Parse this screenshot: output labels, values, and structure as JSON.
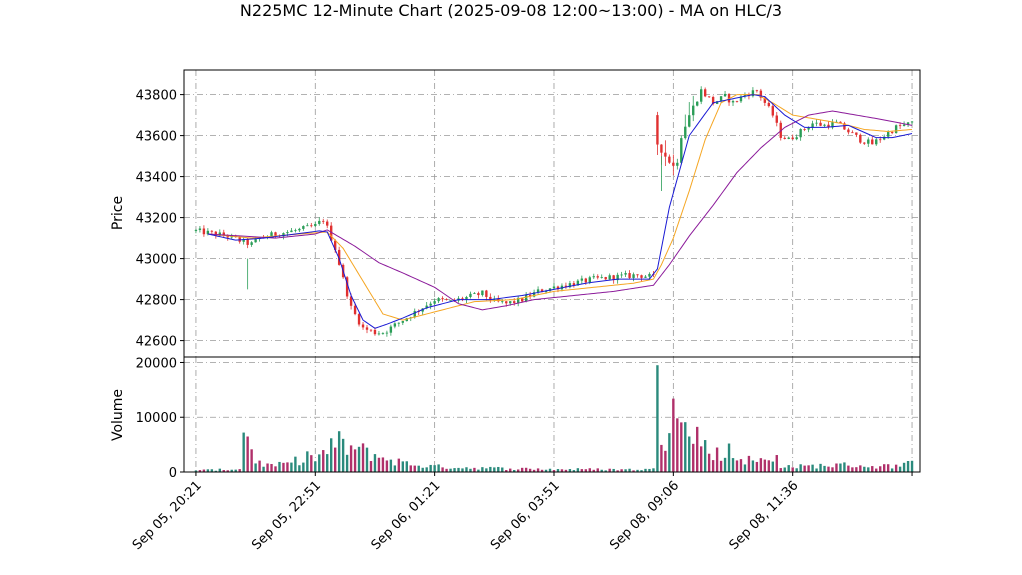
{
  "chart_data": {
    "type": "candlestick",
    "title": "N225MC 12-Minute Chart (2025-09-08 12:00~13:00) - MA on HLC/3",
    "price_panel": {
      "ylabel": "Price",
      "ylim": [
        42520,
        43920
      ],
      "yticks": [
        42600,
        42800,
        43000,
        43200,
        43400,
        43600,
        43800
      ],
      "ytick_labels": [
        "42600",
        "42800",
        "43000",
        "43200",
        "43400",
        "43600",
        "43800"
      ],
      "grid": true,
      "up_color": "#2a9d57",
      "down_color": "#e03030"
    },
    "volume_panel": {
      "ylabel": "Volume",
      "ylim": [
        0,
        21000
      ],
      "yticks": [
        0,
        10000,
        20000
      ],
      "ytick_labels": [
        "0",
        "10000",
        "20000"
      ],
      "up_color": "#2a8a7c",
      "down_color": "#b0306a"
    },
    "xlim": [
      -3,
      182
    ],
    "xticks": [
      0,
      30,
      60,
      90,
      120,
      150,
      180
    ],
    "xtick_labels": [
      "Sep 05, 20:21",
      "Sep 05, 22:51",
      "Sep 06, 01:21",
      "Sep 06, 03:51",
      "Sep 08, 09:06",
      "Sep 08, 11:36",
      ""
    ],
    "close_anchors": [
      [
        0,
        43135
      ],
      [
        8,
        43110
      ],
      [
        12,
        43080
      ],
      [
        14,
        43070
      ],
      [
        16,
        43100
      ],
      [
        20,
        43120
      ],
      [
        26,
        43140
      ],
      [
        30,
        43160
      ],
      [
        32,
        43190
      ],
      [
        33,
        43150
      ],
      [
        35,
        43050
      ],
      [
        37,
        42900
      ],
      [
        39,
        42760
      ],
      [
        42,
        42660
      ],
      [
        45,
        42640
      ],
      [
        47,
        42640
      ],
      [
        48,
        42650
      ],
      [
        52,
        42700
      ],
      [
        56,
        42750
      ],
      [
        60,
        42800
      ],
      [
        64,
        42790
      ],
      [
        68,
        42810
      ],
      [
        72,
        42830
      ],
      [
        75,
        42790
      ],
      [
        78,
        42780
      ],
      [
        82,
        42800
      ],
      [
        86,
        42840
      ],
      [
        90,
        42860
      ],
      [
        95,
        42880
      ],
      [
        100,
        42900
      ],
      [
        105,
        42910
      ],
      [
        111,
        42920
      ],
      [
        115,
        42910
      ],
      [
        116,
        43560
      ],
      [
        118,
        43500
      ],
      [
        120,
        43450
      ],
      [
        121,
        43480
      ],
      [
        122,
        43600
      ],
      [
        124,
        43700
      ],
      [
        127,
        43820
      ],
      [
        130,
        43760
      ],
      [
        133,
        43790
      ],
      [
        135,
        43760
      ],
      [
        138,
        43800
      ],
      [
        141,
        43820
      ],
      [
        143,
        43760
      ],
      [
        145,
        43700
      ],
      [
        147,
        43600
      ],
      [
        149,
        43580
      ],
      [
        152,
        43620
      ],
      [
        155,
        43660
      ],
      [
        158,
        43650
      ],
      [
        161,
        43660
      ],
      [
        164,
        43620
      ],
      [
        167,
        43580
      ],
      [
        170,
        43560
      ],
      [
        173,
        43600
      ],
      [
        176,
        43640
      ],
      [
        180,
        43660
      ]
    ],
    "ma_blue": [
      [
        3,
        43120
      ],
      [
        10,
        43090
      ],
      [
        17,
        43100
      ],
      [
        25,
        43120
      ],
      [
        31,
        43135
      ],
      [
        33,
        43130
      ],
      [
        36,
        43000
      ],
      [
        39,
        42820
      ],
      [
        42,
        42700
      ],
      [
        45,
        42660
      ],
      [
        48,
        42680
      ],
      [
        52,
        42710
      ],
      [
        58,
        42760
      ],
      [
        66,
        42800
      ],
      [
        74,
        42800
      ],
      [
        82,
        42820
      ],
      [
        90,
        42850
      ],
      [
        98,
        42880
      ],
      [
        106,
        42900
      ],
      [
        114,
        42900
      ],
      [
        116,
        42950
      ],
      [
        119,
        43250
      ],
      [
        124,
        43600
      ],
      [
        130,
        43760
      ],
      [
        135,
        43780
      ],
      [
        140,
        43800
      ],
      [
        143,
        43790
      ],
      [
        148,
        43700
      ],
      [
        153,
        43640
      ],
      [
        158,
        43640
      ],
      [
        164,
        43650
      ],
      [
        171,
        43590
      ],
      [
        175,
        43590
      ],
      [
        180,
        43610
      ]
    ],
    "ma_orange": [
      [
        3,
        43120
      ],
      [
        14,
        43100
      ],
      [
        26,
        43120
      ],
      [
        33,
        43130
      ],
      [
        37,
        43050
      ],
      [
        42,
        42890
      ],
      [
        47,
        42730
      ],
      [
        52,
        42700
      ],
      [
        60,
        42740
      ],
      [
        70,
        42790
      ],
      [
        80,
        42800
      ],
      [
        90,
        42840
      ],
      [
        100,
        42860
      ],
      [
        110,
        42880
      ],
      [
        115,
        42900
      ],
      [
        117,
        42970
      ],
      [
        120,
        43100
      ],
      [
        124,
        43330
      ],
      [
        128,
        43580
      ],
      [
        132,
        43760
      ],
      [
        136,
        43800
      ],
      [
        141,
        43800
      ],
      [
        145,
        43760
      ],
      [
        150,
        43700
      ],
      [
        156,
        43680
      ],
      [
        162,
        43660
      ],
      [
        168,
        43630
      ],
      [
        174,
        43620
      ],
      [
        180,
        43630
      ]
    ],
    "ma_purple": [
      [
        3,
        43120
      ],
      [
        20,
        43100
      ],
      [
        30,
        43120
      ],
      [
        33,
        43140
      ],
      [
        40,
        43060
      ],
      [
        46,
        42980
      ],
      [
        52,
        42930
      ],
      [
        60,
        42860
      ],
      [
        66,
        42780
      ],
      [
        72,
        42750
      ],
      [
        78,
        42770
      ],
      [
        85,
        42800
      ],
      [
        95,
        42820
      ],
      [
        105,
        42840
      ],
      [
        115,
        42870
      ],
      [
        119,
        42970
      ],
      [
        124,
        43110
      ],
      [
        130,
        43260
      ],
      [
        136,
        43420
      ],
      [
        142,
        43540
      ],
      [
        148,
        43640
      ],
      [
        154,
        43700
      ],
      [
        160,
        43720
      ],
      [
        166,
        43700
      ],
      [
        172,
        43680
      ],
      [
        180,
        43650
      ]
    ],
    "volume_anchors": [
      [
        0,
        300
      ],
      [
        10,
        500
      ],
      [
        12,
        900
      ],
      [
        13,
        7000
      ],
      [
        15,
        2000
      ],
      [
        18,
        1200
      ],
      [
        22,
        1300
      ],
      [
        26,
        2200
      ],
      [
        28,
        3000
      ],
      [
        30,
        2400
      ],
      [
        33,
        3800
      ],
      [
        36,
        5500
      ],
      [
        38,
        4500
      ],
      [
        42,
        3800
      ],
      [
        46,
        2800
      ],
      [
        50,
        2000
      ],
      [
        55,
        1300
      ],
      [
        60,
        1000
      ],
      [
        68,
        800
      ],
      [
        78,
        650
      ],
      [
        90,
        500
      ],
      [
        100,
        500
      ],
      [
        110,
        450
      ],
      [
        115,
        500
      ],
      [
        116,
        19200
      ],
      [
        117,
        7500
      ],
      [
        118,
        6000
      ],
      [
        120,
        13200
      ],
      [
        121,
        9500
      ],
      [
        124,
        6500
      ],
      [
        126,
        6800
      ],
      [
        128,
        4600
      ],
      [
        130,
        3800
      ],
      [
        133,
        2300
      ],
      [
        135,
        2800
      ],
      [
        137,
        2500
      ],
      [
        140,
        2000
      ],
      [
        143,
        2100
      ],
      [
        148,
        1000
      ],
      [
        152,
        1000
      ],
      [
        158,
        1200
      ],
      [
        165,
        1300
      ],
      [
        170,
        1000
      ],
      [
        175,
        1100
      ],
      [
        180,
        1500
      ]
    ],
    "volume_spikes": [
      [
        12,
        7200
      ],
      [
        116,
        19500
      ],
      [
        120,
        13400
      ],
      [
        121,
        9800
      ],
      [
        134,
        5200
      ],
      [
        146,
        3100
      ]
    ]
  }
}
